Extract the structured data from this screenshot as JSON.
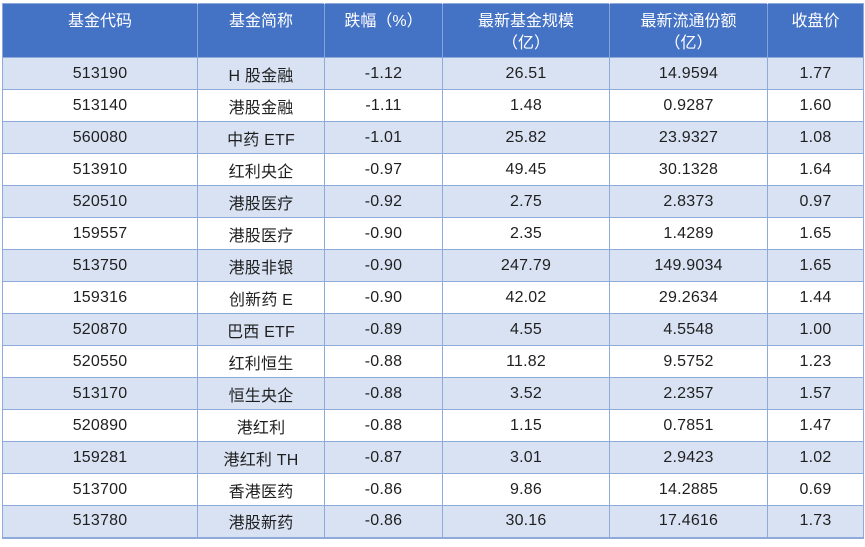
{
  "table": {
    "columns": [
      {
        "label": "基金代码",
        "sublabel": ""
      },
      {
        "label": "基金简称",
        "sublabel": ""
      },
      {
        "label": "跌幅（%）",
        "sublabel": ""
      },
      {
        "label": "最新基金规模",
        "sublabel": "（亿）"
      },
      {
        "label": "最新流通份额",
        "sublabel": "（亿）"
      },
      {
        "label": "收盘价",
        "sublabel": ""
      }
    ],
    "rows": [
      {
        "code": "513190",
        "name": "H 股金融",
        "decline": "-1.12",
        "scale": "26.51",
        "shares": "14.9594",
        "close": "1.77"
      },
      {
        "code": "513140",
        "name": "港股金融",
        "decline": "-1.11",
        "scale": "1.48",
        "shares": "0.9287",
        "close": "1.60"
      },
      {
        "code": "560080",
        "name": "中药 ETF",
        "decline": "-1.01",
        "scale": "25.82",
        "shares": "23.9327",
        "close": "1.08"
      },
      {
        "code": "513910",
        "name": "红利央企",
        "decline": "-0.97",
        "scale": "49.45",
        "shares": "30.1328",
        "close": "1.64"
      },
      {
        "code": "520510",
        "name": "港股医疗",
        "decline": "-0.92",
        "scale": "2.75",
        "shares": "2.8373",
        "close": "0.97"
      },
      {
        "code": "159557",
        "name": "港股医疗",
        "decline": "-0.90",
        "scale": "2.35",
        "shares": "1.4289",
        "close": "1.65"
      },
      {
        "code": "513750",
        "name": "港股非银",
        "decline": "-0.90",
        "scale": "247.79",
        "shares": "149.9034",
        "close": "1.65"
      },
      {
        "code": "159316",
        "name": "创新药 E",
        "decline": "-0.90",
        "scale": "42.02",
        "shares": "29.2634",
        "close": "1.44"
      },
      {
        "code": "520870",
        "name": "巴西 ETF",
        "decline": "-0.89",
        "scale": "4.55",
        "shares": "4.5548",
        "close": "1.00"
      },
      {
        "code": "520550",
        "name": "红利恒生",
        "decline": "-0.88",
        "scale": "11.82",
        "shares": "9.5752",
        "close": "1.23"
      },
      {
        "code": "513170",
        "name": "恒生央企",
        "decline": "-0.88",
        "scale": "3.52",
        "shares": "2.2357",
        "close": "1.57"
      },
      {
        "code": "520890",
        "name": "港红利",
        "decline": "-0.88",
        "scale": "1.15",
        "shares": "0.7851",
        "close": "1.47"
      },
      {
        "code": "159281",
        "name": "港红利 TH",
        "decline": "-0.87",
        "scale": "3.01",
        "shares": "2.9423",
        "close": "1.02"
      },
      {
        "code": "513700",
        "name": "香港医药",
        "decline": "-0.86",
        "scale": "9.86",
        "shares": "14.2885",
        "close": "0.69"
      },
      {
        "code": "513780",
        "name": "港股新药",
        "decline": "-0.86",
        "scale": "30.16",
        "shares": "17.4616",
        "close": "1.73"
      }
    ]
  },
  "colors": {
    "header_bg": "#4472C4",
    "header_text": "#FFFFFF",
    "band_bg": "#D9E2F3",
    "plain_bg": "#FFFFFF",
    "border": "#8EAADB",
    "body_text": "#1F1F1F",
    "page_bg": "#FFFFFF"
  }
}
